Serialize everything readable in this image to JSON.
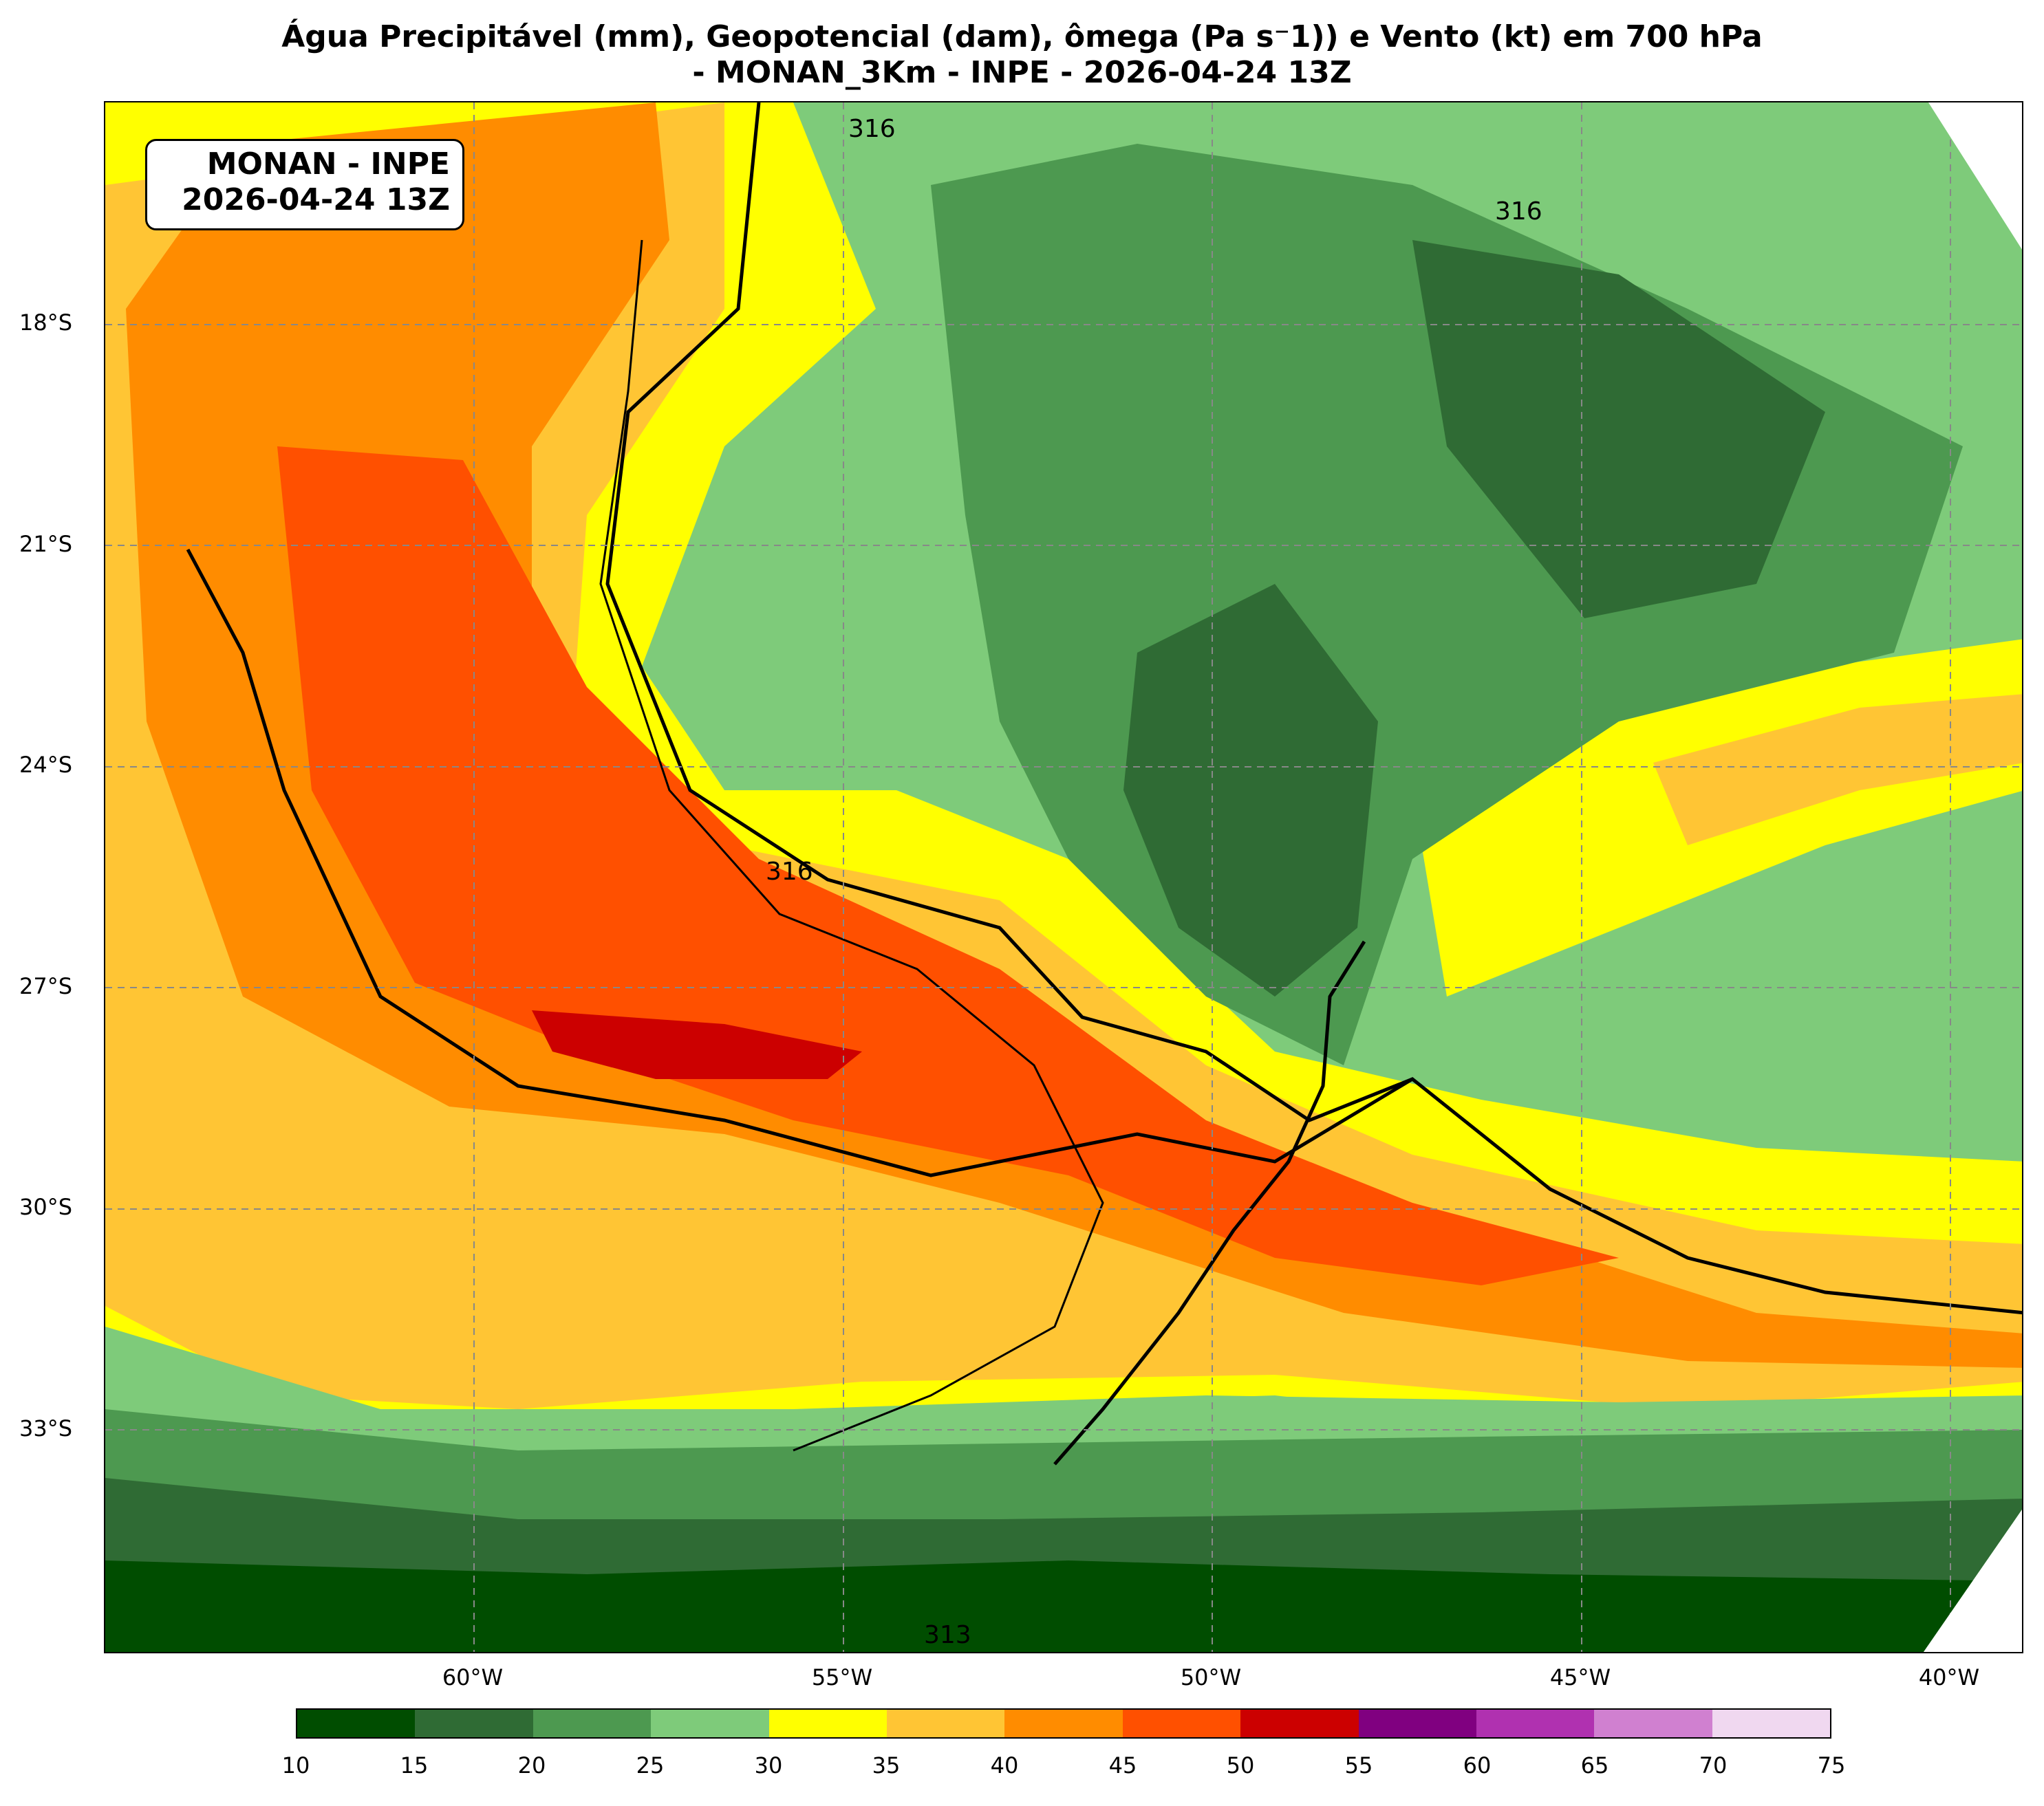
{
  "title": {
    "line1": "Água Precipitável (mm), Geopotencial (dam), ômega (Pa s⁻1)) e Vento (kt) em 700 hPa",
    "line2": "- MONAN_3Km - INPE - 2026-04-24 13Z"
  },
  "label_box": {
    "line1": "MONAN - INPE",
    "line2": "2026-04-24 13Z"
  },
  "lat_labels": [
    "18°S",
    "21°S",
    "24°S",
    "27°S",
    "30°S",
    "33°S"
  ],
  "lon_labels": [
    "60°W",
    "55°W",
    "50°W",
    "45°W",
    "40°W"
  ],
  "contour_labels": [
    "316",
    "316",
    "316",
    "313"
  ],
  "colorbar": {
    "ticks": [
      "10",
      "15",
      "20",
      "25",
      "30",
      "35",
      "40",
      "45",
      "50",
      "55",
      "60",
      "65",
      "70",
      "75"
    ],
    "colors": [
      "#004d00",
      "#2f6b34",
      "#4d9950",
      "#7ecb7a",
      "#ffff00",
      "#ffc534",
      "#ff8c00",
      "#ff5000",
      "#cc0000",
      "#800080",
      "#b031b0",
      "#d080d0",
      "#f0d8f0"
    ]
  },
  "map_extent": {
    "lon_min": -64.7,
    "lon_max": -38.7,
    "lat_min": -36.7,
    "lat_max": -15.2
  }
}
